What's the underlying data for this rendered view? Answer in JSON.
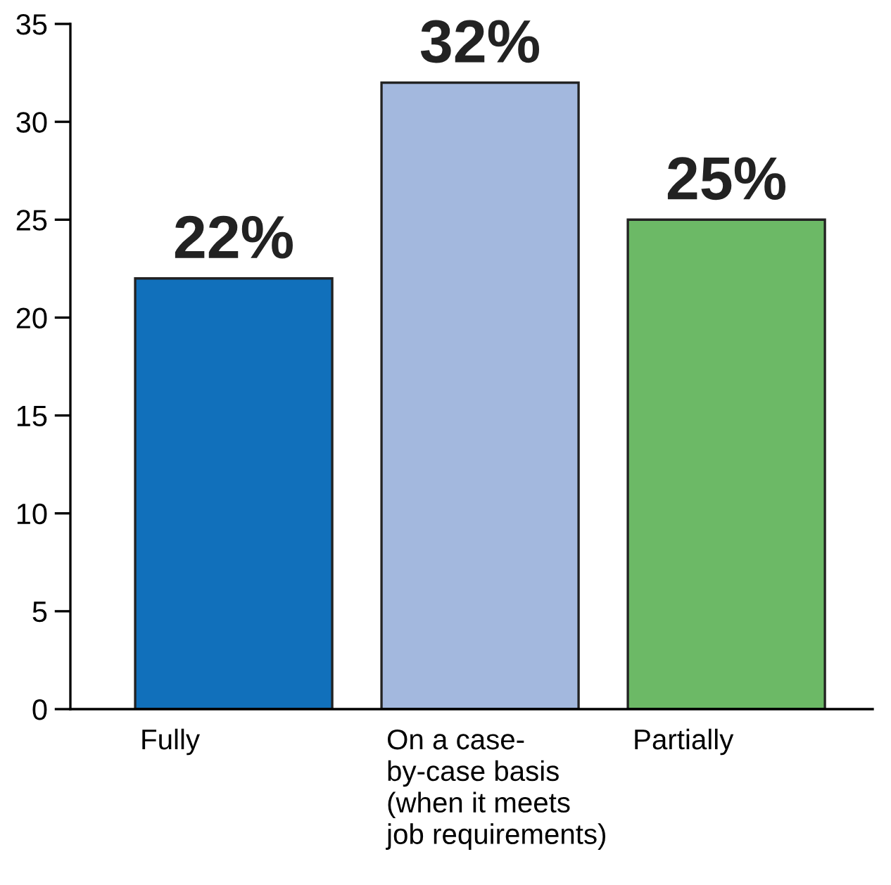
{
  "chart_data": {
    "type": "bar",
    "categories": [
      "Fully",
      "On a case-\nby-case basis\n(when it meets\njob requirements)",
      "Partially"
    ],
    "values": [
      22,
      32,
      25
    ],
    "colors": [
      "#1170bb",
      "#a3b8de",
      "#6cb966"
    ],
    "value_labels": [
      "22%",
      "32%",
      "25%"
    ],
    "ylim": [
      0,
      35
    ],
    "yticks": [
      0,
      5,
      10,
      15,
      20,
      25,
      30,
      35
    ],
    "grid": false,
    "legend": false
  }
}
